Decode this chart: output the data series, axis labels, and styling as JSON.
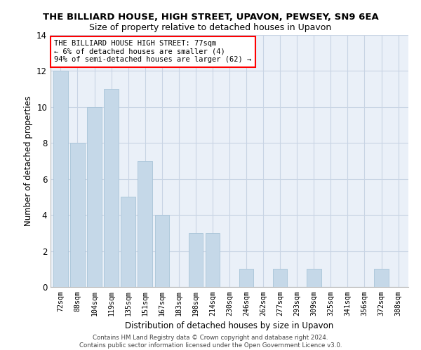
{
  "title": "THE BILLIARD HOUSE, HIGH STREET, UPAVON, PEWSEY, SN9 6EA",
  "subtitle": "Size of property relative to detached houses in Upavon",
  "xlabel": "Distribution of detached houses by size in Upavon",
  "ylabel": "Number of detached properties",
  "categories": [
    "72sqm",
    "88sqm",
    "104sqm",
    "119sqm",
    "135sqm",
    "151sqm",
    "167sqm",
    "183sqm",
    "198sqm",
    "214sqm",
    "230sqm",
    "246sqm",
    "262sqm",
    "277sqm",
    "293sqm",
    "309sqm",
    "325sqm",
    "341sqm",
    "356sqm",
    "372sqm",
    "388sqm"
  ],
  "values": [
    12,
    8,
    10,
    11,
    5,
    7,
    4,
    0,
    3,
    3,
    0,
    1,
    0,
    1,
    0,
    1,
    0,
    0,
    0,
    1,
    0
  ],
  "bar_color": "#c5d8e8",
  "bar_edge_color": "#a8c4d8",
  "ylim": [
    0,
    14
  ],
  "yticks": [
    0,
    2,
    4,
    6,
    8,
    10,
    12,
    14
  ],
  "annotation_text": "THE BILLIARD HOUSE HIGH STREET: 77sqm\n← 6% of detached houses are smaller (4)\n94% of semi-detached houses are larger (62) →",
  "footer_line1": "Contains HM Land Registry data © Crown copyright and database right 2024.",
  "footer_line2": "Contains public sector information licensed under the Open Government Licence v3.0.",
  "bg_color": "#ffffff",
  "plot_bg_color": "#eaf0f8",
  "grid_color": "#c8d4e4"
}
